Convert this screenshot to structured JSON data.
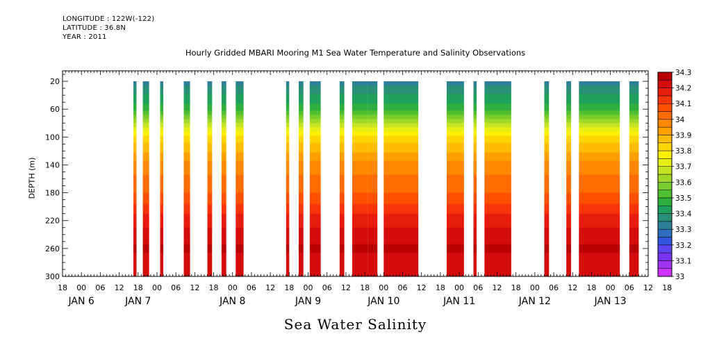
{
  "header": {
    "longitude": "LONGITUDE : 122W(-122)",
    "latitude": "LATITUDE : 36.8N",
    "year": "YEAR : 2011"
  },
  "chart_data": {
    "type": "heatmap",
    "title": "Hourly Gridded MBARI Mooring M1 Sea Water Temperature and Salinity Observations",
    "xlabel": "Sea Water Salinity",
    "ylabel": "DEPTH (m)",
    "ylim": [
      300,
      5
    ],
    "y_ticks": [
      20,
      60,
      100,
      140,
      180,
      220,
      260,
      300
    ],
    "xlim_hours": [
      0,
      186
    ],
    "x_hour_ticks": [
      "18",
      "00",
      "06",
      "12",
      "18",
      "00",
      "06",
      "12",
      "18",
      "00",
      "06",
      "12",
      "18",
      "00",
      "06",
      "12",
      "18",
      "00",
      "06",
      "12",
      "18",
      "00",
      "06",
      "12",
      "18",
      "00",
      "06",
      "12",
      "18",
      "00",
      "06",
      "12",
      "18"
    ],
    "day_labels": [
      {
        "label": "JAN  6",
        "hour": 6
      },
      {
        "label": "JAN  7",
        "hour": 24
      },
      {
        "label": "JAN  8",
        "hour": 54
      },
      {
        "label": "JAN  9",
        "hour": 78
      },
      {
        "label": "JAN 10",
        "hour": 102
      },
      {
        "label": "JAN 11",
        "hour": 126
      },
      {
        "label": "JAN 12",
        "hour": 150
      },
      {
        "label": "JAN 13",
        "hour": 174
      }
    ],
    "colorbar": {
      "levels": [
        33,
        33.05,
        33.1,
        33.15,
        33.2,
        33.25,
        33.3,
        33.35,
        33.4,
        33.45,
        33.5,
        33.55,
        33.6,
        33.65,
        33.7,
        33.75,
        33.8,
        33.85,
        33.9,
        33.95,
        34,
        34.05,
        34.1,
        34.15,
        34.2,
        34.25,
        34.3
      ],
      "labels": [
        "33",
        "33.1",
        "33.2",
        "33.3",
        "33.4",
        "33.5",
        "33.6",
        "33.7",
        "33.8",
        "33.9",
        "34",
        "34.1",
        "34.2",
        "34.3"
      ],
      "colors": [
        "#cc33ff",
        "#a033ee",
        "#7a33ee",
        "#5c44ee",
        "#3355dd",
        "#2f6fbf",
        "#2d7f98",
        "#2a8f78",
        "#1fa05c",
        "#2eaf40",
        "#4fbe30",
        "#78cc2c",
        "#a0d82a",
        "#c6e424",
        "#e6ee16",
        "#fff200",
        "#ffd600",
        "#ffbc00",
        "#ffa000",
        "#ff8800",
        "#ff6d00",
        "#ff5000",
        "#f83408",
        "#e81c0c",
        "#d40c0c",
        "#b80000"
      ]
    },
    "data_segments_hours": [
      [
        22.5,
        23.5
      ],
      [
        25.5,
        27.5
      ],
      [
        31,
        32
      ],
      [
        38.5,
        40.5
      ],
      [
        46,
        47.5
      ],
      [
        50.5,
        52
      ],
      [
        55,
        57.5
      ],
      [
        71,
        72
      ],
      [
        75,
        76.5
      ],
      [
        78.5,
        82
      ],
      [
        88,
        89.5
      ],
      [
        92,
        97
      ],
      [
        97,
        100
      ],
      [
        102,
        113
      ],
      [
        122,
        127.5
      ],
      [
        130.5,
        131.5
      ],
      [
        134,
        142.5
      ],
      [
        153,
        154.5
      ],
      [
        160,
        161.5
      ],
      [
        164,
        177
      ],
      [
        180,
        183
      ]
    ],
    "series_profile": [
      {
        "depth": 5,
        "value": 33.3
      },
      {
        "depth": 20,
        "value": 33.33
      },
      {
        "depth": 60,
        "value": 33.48
      },
      {
        "depth": 100,
        "value": 33.82
      },
      {
        "depth": 140,
        "value": 33.97
      },
      {
        "depth": 180,
        "value": 34.05
      },
      {
        "depth": 220,
        "value": 34.18
      },
      {
        "depth": 260,
        "value": 34.26
      },
      {
        "depth": 300,
        "value": 34.2
      }
    ]
  }
}
